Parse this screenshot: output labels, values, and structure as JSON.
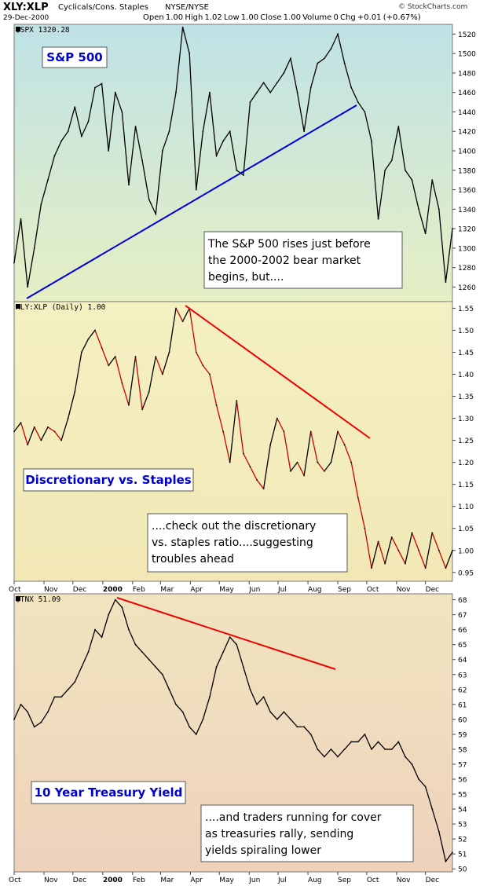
{
  "header": {
    "symbol": "XLY:XLP",
    "name": "Cyclicals/Cons. Staples",
    "exchange": "NYSE/NYSE",
    "date": "29-Dec-2000",
    "ohlc": "Open 1.00  High 1.02  Low 1.00  Close 1.00  Volume 0  Chg +0.01 (+0.67%)",
    "chg_icon": "triangle-up-icon",
    "watermark": "© StockCharts.com"
  },
  "x_axis_labels": [
    "Oct",
    "Nov",
    "Dec",
    "2000",
    "Feb",
    "Mar",
    "Apr",
    "May",
    "Jun",
    "Jul",
    "Aug",
    "Sep",
    "Oct",
    "Nov",
    "Dec"
  ],
  "colors": {
    "spx_line": "#000000",
    "ratio_line_up": "#000000",
    "ratio_line_down": "#cc0000",
    "spx_trendline": "#0000dd",
    "ratio_trendline": "#ee0000",
    "tnx_trendline": "#ee0000",
    "label_text": "#0000cc"
  },
  "chart_data": [
    {
      "type": "line",
      "legend": "$SPX 1320.28",
      "panel_label": "S&P 500",
      "annotation": [
        "The S&P 500 rises just before",
        "the 2000-2002 bear market",
        "begins, but...."
      ],
      "ylim": [
        1245,
        1530
      ],
      "yticks": [
        1260,
        1280,
        1300,
        1320,
        1340,
        1360,
        1380,
        1400,
        1420,
        1440,
        1460,
        1480,
        1500,
        1520
      ],
      "x": [
        "1999-10-01",
        "1999-10-08",
        "1999-10-15",
        "1999-10-22",
        "1999-10-29",
        "1999-11-05",
        "1999-11-12",
        "1999-11-19",
        "1999-11-26",
        "1999-12-03",
        "1999-12-10",
        "1999-12-17",
        "1999-12-24",
        "1999-12-31",
        "2000-01-07",
        "2000-01-14",
        "2000-01-21",
        "2000-01-28",
        "2000-02-04",
        "2000-02-11",
        "2000-02-18",
        "2000-02-25",
        "2000-03-03",
        "2000-03-10",
        "2000-03-17",
        "2000-03-24",
        "2000-03-31",
        "2000-04-07",
        "2000-04-14",
        "2000-04-21",
        "2000-04-28",
        "2000-05-05",
        "2000-05-12",
        "2000-05-19",
        "2000-05-26",
        "2000-06-02",
        "2000-06-09",
        "2000-06-16",
        "2000-06-23",
        "2000-06-30",
        "2000-07-07",
        "2000-07-14",
        "2000-07-21",
        "2000-07-28",
        "2000-08-04",
        "2000-08-11",
        "2000-08-18",
        "2000-08-25",
        "2000-09-01",
        "2000-09-08",
        "2000-09-15",
        "2000-09-22",
        "2000-09-29",
        "2000-10-06",
        "2000-10-13",
        "2000-10-20",
        "2000-10-27",
        "2000-11-03",
        "2000-11-10",
        "2000-11-17",
        "2000-11-24",
        "2000-12-01",
        "2000-12-08",
        "2000-12-15",
        "2000-12-22",
        "2000-12-29"
      ],
      "values": [
        1285,
        1330,
        1260,
        1300,
        1345,
        1370,
        1395,
        1410,
        1420,
        1445,
        1415,
        1430,
        1465,
        1469,
        1400,
        1460,
        1440,
        1365,
        1425,
        1390,
        1350,
        1335,
        1400,
        1420,
        1460,
        1527,
        1500,
        1360,
        1420,
        1460,
        1395,
        1410,
        1420,
        1380,
        1375,
        1450,
        1460,
        1470,
        1460,
        1470,
        1480,
        1495,
        1460,
        1420,
        1465,
        1490,
        1495,
        1505,
        1520,
        1490,
        1465,
        1450,
        1440,
        1410,
        1330,
        1380,
        1390,
        1425,
        1380,
        1370,
        1340,
        1315,
        1370,
        1340,
        1265,
        1320
      ]
    },
    {
      "type": "line",
      "legend": "XLY:XLP (Daily) 1.00",
      "panel_label": "Discretionary vs. Staples",
      "annotation": [
        "....check out the discretionary",
        "vs. staples ratio....suggesting",
        "troubles ahead"
      ],
      "ylim": [
        0.93,
        1.565
      ],
      "yticks": [
        0.95,
        1.0,
        1.05,
        1.1,
        1.15,
        1.2,
        1.25,
        1.3,
        1.35,
        1.4,
        1.45,
        1.5,
        1.55
      ],
      "x": [
        "1999-10-01",
        "1999-10-08",
        "1999-10-15",
        "1999-10-22",
        "1999-10-29",
        "1999-11-05",
        "1999-11-12",
        "1999-11-19",
        "1999-11-26",
        "1999-12-03",
        "1999-12-10",
        "1999-12-17",
        "1999-12-24",
        "1999-12-31",
        "2000-01-07",
        "2000-01-14",
        "2000-01-21",
        "2000-01-28",
        "2000-02-04",
        "2000-02-11",
        "2000-02-18",
        "2000-02-25",
        "2000-03-03",
        "2000-03-10",
        "2000-03-17",
        "2000-03-24",
        "2000-03-31",
        "2000-04-07",
        "2000-04-14",
        "2000-04-21",
        "2000-04-28",
        "2000-05-05",
        "2000-05-12",
        "2000-05-19",
        "2000-05-26",
        "2000-06-02",
        "2000-06-09",
        "2000-06-16",
        "2000-06-23",
        "2000-06-30",
        "2000-07-07",
        "2000-07-14",
        "2000-07-21",
        "2000-07-28",
        "2000-08-04",
        "2000-08-11",
        "2000-08-18",
        "2000-08-25",
        "2000-09-01",
        "2000-09-08",
        "2000-09-15",
        "2000-09-22",
        "2000-09-29",
        "2000-10-06",
        "2000-10-13",
        "2000-10-20",
        "2000-10-27",
        "2000-11-03",
        "2000-11-10",
        "2000-11-17",
        "2000-11-24",
        "2000-12-01",
        "2000-12-08",
        "2000-12-15",
        "2000-12-22",
        "2000-12-29"
      ],
      "values": [
        1.27,
        1.29,
        1.24,
        1.28,
        1.25,
        1.28,
        1.27,
        1.25,
        1.3,
        1.36,
        1.45,
        1.48,
        1.5,
        1.46,
        1.42,
        1.44,
        1.38,
        1.33,
        1.44,
        1.32,
        1.36,
        1.44,
        1.4,
        1.45,
        1.55,
        1.52,
        1.55,
        1.45,
        1.42,
        1.4,
        1.33,
        1.27,
        1.2,
        1.34,
        1.22,
        1.19,
        1.16,
        1.14,
        1.24,
        1.3,
        1.27,
        1.18,
        1.2,
        1.17,
        1.27,
        1.2,
        1.18,
        1.2,
        1.27,
        1.24,
        1.2,
        1.12,
        1.05,
        0.96,
        1.02,
        0.97,
        1.03,
        1.0,
        0.97,
        1.04,
        1.0,
        0.96,
        1.04,
        1.0,
        0.96,
        1.0
      ]
    },
    {
      "type": "line",
      "legend": "$TNX 51.09",
      "panel_label": "10 Year Treasury Yield",
      "annotation": [
        "....and traders running for cover",
        "as treasuries rally, sending",
        "yields spiraling lower"
      ],
      "ylim": [
        49.8,
        68.4
      ],
      "yticks": [
        50,
        51,
        52,
        53,
        54,
        55,
        56,
        57,
        58,
        59,
        60,
        61,
        62,
        63,
        64,
        65,
        66,
        67,
        68
      ],
      "x": [
        "1999-10-01",
        "1999-10-08",
        "1999-10-15",
        "1999-10-22",
        "1999-10-29",
        "1999-11-05",
        "1999-11-12",
        "1999-11-19",
        "1999-11-26",
        "1999-12-03",
        "1999-12-10",
        "1999-12-17",
        "1999-12-24",
        "1999-12-31",
        "2000-01-07",
        "2000-01-14",
        "2000-01-21",
        "2000-01-28",
        "2000-02-04",
        "2000-02-11",
        "2000-02-18",
        "2000-02-25",
        "2000-03-03",
        "2000-03-10",
        "2000-03-17",
        "2000-03-24",
        "2000-03-31",
        "2000-04-07",
        "2000-04-14",
        "2000-04-21",
        "2000-04-28",
        "2000-05-05",
        "2000-05-12",
        "2000-05-19",
        "2000-05-26",
        "2000-06-02",
        "2000-06-09",
        "2000-06-16",
        "2000-06-23",
        "2000-06-30",
        "2000-07-07",
        "2000-07-14",
        "2000-07-21",
        "2000-07-28",
        "2000-08-04",
        "2000-08-11",
        "2000-08-18",
        "2000-08-25",
        "2000-09-01",
        "2000-09-08",
        "2000-09-15",
        "2000-09-22",
        "2000-09-29",
        "2000-10-06",
        "2000-10-13",
        "2000-10-20",
        "2000-10-27",
        "2000-11-03",
        "2000-11-10",
        "2000-11-17",
        "2000-11-24",
        "2000-12-01",
        "2000-12-08",
        "2000-12-15",
        "2000-12-22",
        "2000-12-29"
      ],
      "values": [
        60.0,
        61.0,
        60.5,
        59.5,
        59.8,
        60.5,
        61.5,
        61.5,
        62.0,
        62.5,
        63.5,
        64.5,
        66.0,
        65.5,
        67.0,
        68.0,
        67.5,
        66.0,
        65.0,
        64.5,
        64.0,
        63.5,
        63.0,
        62.0,
        61.0,
        60.5,
        59.5,
        59.0,
        60.0,
        61.5,
        63.5,
        64.5,
        65.5,
        65.0,
        63.5,
        62.0,
        61.0,
        61.5,
        60.5,
        60.0,
        60.5,
        60.0,
        59.5,
        59.5,
        59.0,
        58.0,
        57.5,
        58.0,
        57.5,
        58.0,
        58.5,
        58.5,
        59.0,
        58.0,
        58.5,
        58.0,
        58.0,
        58.5,
        57.5,
        57.0,
        56.0,
        55.5,
        54.0,
        52.5,
        50.5,
        51.1
      ]
    }
  ]
}
